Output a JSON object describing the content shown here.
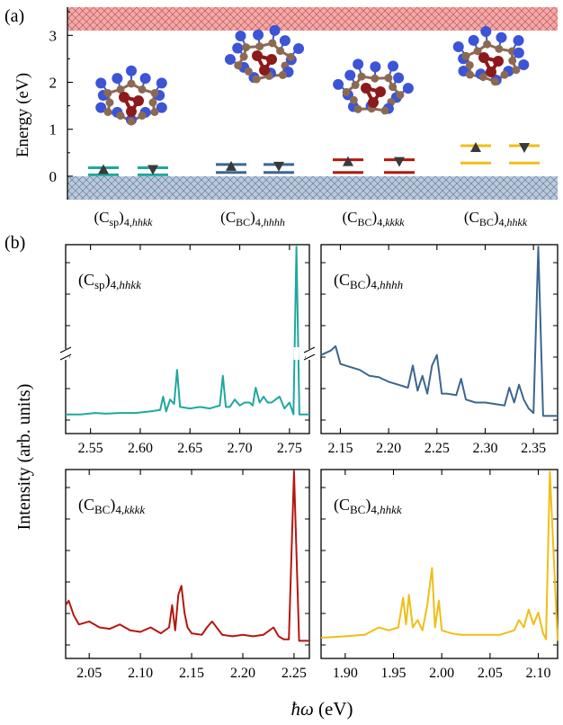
{
  "figure": {
    "label_a": "(a)",
    "label_b": "(b)",
    "ylabel_a": "Energy (eV)",
    "ylabel_b": "Intensity (arb. units)",
    "xlabel_b_sym": "ħω",
    "xlabel_b_unit": " (eV)"
  },
  "colors": {
    "teal": "#1fa89e",
    "blue": "#3c6690",
    "red": "#b5170f",
    "yellow": "#f0be16",
    "cb_fill": "#f2a9a8",
    "vb_fill": "#b9c9dc",
    "atom_c": "#8c6a52",
    "atom_n": "#3b55d6",
    "atom_dopant": "#8c1a1a"
  },
  "chart_data": [
    {
      "type": "level-diagram",
      "panel": "a",
      "ylabel": "Energy (eV)",
      "ylim": [
        -0.5,
        3.6
      ],
      "yticks": [
        0,
        1,
        2,
        3
      ],
      "conduction_band_bottom": 3.2,
      "valence_band_top": 0.0,
      "configs": [
        {
          "label_main": "(C",
          "label_sub1": "sp",
          "label_mid": ")",
          "label_sub2": "4,",
          "label_sub3": "hhkk",
          "color": "#1fa89e",
          "occupied_level": 0.18,
          "empty_level": 0.03
        },
        {
          "label_main": "(C",
          "label_sub1": "BC",
          "label_mid": ")",
          "label_sub2": "4,",
          "label_sub3": "hhhh",
          "color": "#3c6690",
          "occupied_level": 0.25,
          "empty_level": 0.08
        },
        {
          "label_main": "(C",
          "label_sub1": "BC",
          "label_mid": ")",
          "label_sub2": "4,",
          "label_sub3": "kkkk",
          "color": "#b5170f",
          "occupied_level": 0.35,
          "empty_level": 0.08
        },
        {
          "label_main": "(C",
          "label_sub1": "BC",
          "label_mid": ")",
          "label_sub2": "4,",
          "label_sub3": "hhkk",
          "color": "#f0be16",
          "occupied_level": 0.65,
          "empty_level": 0.28
        }
      ]
    },
    {
      "type": "line",
      "panel": "b1",
      "label_main": "(C",
      "label_sub1": "sp",
      "label_mid": ")",
      "label_sub2": "4,",
      "label_sub3": "hhkk",
      "color": "#1fa89e",
      "xlim": [
        2.525,
        2.77
      ],
      "xticks": [
        "2.55",
        "2.60",
        "2.65",
        "2.70",
        "2.75"
      ],
      "axis_break": true,
      "x": [
        2.525,
        2.54,
        2.555,
        2.565,
        2.58,
        2.595,
        2.61,
        2.62,
        2.623,
        2.626,
        2.63,
        2.634,
        2.637,
        2.64,
        2.65,
        2.66,
        2.67,
        2.68,
        2.683,
        2.686,
        2.69,
        2.695,
        2.7,
        2.705,
        2.71,
        2.713,
        2.716,
        2.72,
        2.724,
        2.728,
        2.732,
        2.736,
        2.74,
        2.745,
        2.75,
        2.754,
        2.757,
        2.76,
        2.77
      ],
      "y": [
        0.02,
        0.02,
        0.03,
        0.025,
        0.03,
        0.03,
        0.04,
        0.05,
        0.14,
        0.04,
        0.12,
        0.09,
        0.32,
        0.07,
        0.06,
        0.07,
        0.06,
        0.08,
        0.28,
        0.07,
        0.07,
        0.12,
        0.08,
        0.1,
        0.1,
        0.08,
        0.2,
        0.1,
        0.14,
        0.1,
        0.1,
        0.12,
        0.14,
        0.06,
        0.1,
        0.02,
        1.15,
        0.02,
        0.02
      ]
    },
    {
      "type": "line",
      "panel": "b2",
      "label_main": "(C",
      "label_sub1": "BC",
      "label_mid": ")",
      "label_sub2": "4,",
      "label_sub3": "hhhh",
      "color": "#3c6690",
      "xlim": [
        2.13,
        2.375
      ],
      "xticks": [
        "2.15",
        "2.20",
        "2.25",
        "2.30",
        "2.35"
      ],
      "x": [
        2.13,
        2.14,
        2.145,
        2.15,
        2.16,
        2.17,
        2.18,
        2.19,
        2.2,
        2.21,
        2.22,
        2.225,
        2.23,
        2.235,
        2.24,
        2.245,
        2.25,
        2.255,
        2.26,
        2.27,
        2.275,
        2.28,
        2.29,
        2.3,
        2.31,
        2.32,
        2.325,
        2.33,
        2.335,
        2.34,
        2.345,
        2.35,
        2.355,
        2.36,
        2.375
      ],
      "y": [
        0.42,
        0.45,
        0.48,
        0.36,
        0.34,
        0.32,
        0.28,
        0.27,
        0.24,
        0.22,
        0.2,
        0.35,
        0.18,
        0.28,
        0.16,
        0.35,
        0.42,
        0.16,
        0.16,
        0.15,
        0.26,
        0.12,
        0.1,
        0.1,
        0.09,
        0.08,
        0.2,
        0.1,
        0.22,
        0.12,
        0.06,
        0.03,
        1.15,
        0.01,
        0.01
      ]
    },
    {
      "type": "line",
      "panel": "b3",
      "label_main": "(C",
      "label_sub1": "BC",
      "label_mid": ")",
      "label_sub2": "4,",
      "label_sub3": "kkkk",
      "color": "#b5170f",
      "xlim": [
        2.027,
        2.265
      ],
      "xticks": [
        "2.05",
        "2.10",
        "2.15",
        "2.20",
        "2.25"
      ],
      "x": [
        2.027,
        2.03,
        2.035,
        2.04,
        2.05,
        2.06,
        2.07,
        2.08,
        2.09,
        2.1,
        2.11,
        2.12,
        2.128,
        2.131,
        2.134,
        2.137,
        2.14,
        2.143,
        2.146,
        2.15,
        2.16,
        2.165,
        2.17,
        2.18,
        2.19,
        2.2,
        2.21,
        2.22,
        2.23,
        2.235,
        2.24,
        2.245,
        2.25,
        2.255,
        2.265
      ],
      "y": [
        0.25,
        0.28,
        0.18,
        0.12,
        0.14,
        0.1,
        0.09,
        0.12,
        0.08,
        0.07,
        0.1,
        0.06,
        0.1,
        0.25,
        0.08,
        0.32,
        0.38,
        0.2,
        0.1,
        0.06,
        0.05,
        0.1,
        0.14,
        0.05,
        0.04,
        0.05,
        0.04,
        0.05,
        0.1,
        0.04,
        0.02,
        0.02,
        1.15,
        0.01,
        0.01
      ]
    },
    {
      "type": "line",
      "panel": "b4",
      "label_main": "(C",
      "label_sub1": "BC",
      "label_mid": ")",
      "label_sub2": "4,",
      "label_sub3": "hhkk",
      "color": "#f0be16",
      "xlim": [
        1.875,
        2.12
      ],
      "xticks": [
        "1.90",
        "1.95",
        "2.00",
        "2.05",
        "2.10"
      ],
      "x": [
        1.875,
        1.9,
        1.92,
        1.935,
        1.945,
        1.955,
        1.96,
        1.963,
        1.966,
        1.97,
        1.975,
        1.98,
        1.985,
        1.99,
        1.993,
        1.997,
        2.0,
        2.01,
        2.02,
        2.04,
        2.06,
        2.075,
        2.08,
        2.085,
        2.09,
        2.095,
        2.1,
        2.105,
        2.108,
        2.112,
        2.12
      ],
      "y": [
        0.03,
        0.04,
        0.05,
        0.1,
        0.08,
        0.1,
        0.3,
        0.12,
        0.32,
        0.1,
        0.15,
        0.08,
        0.25,
        0.5,
        0.1,
        0.28,
        0.08,
        0.06,
        0.05,
        0.05,
        0.05,
        0.08,
        0.15,
        0.1,
        0.22,
        0.12,
        0.2,
        0.06,
        0.02,
        1.15,
        0.01
      ]
    }
  ]
}
